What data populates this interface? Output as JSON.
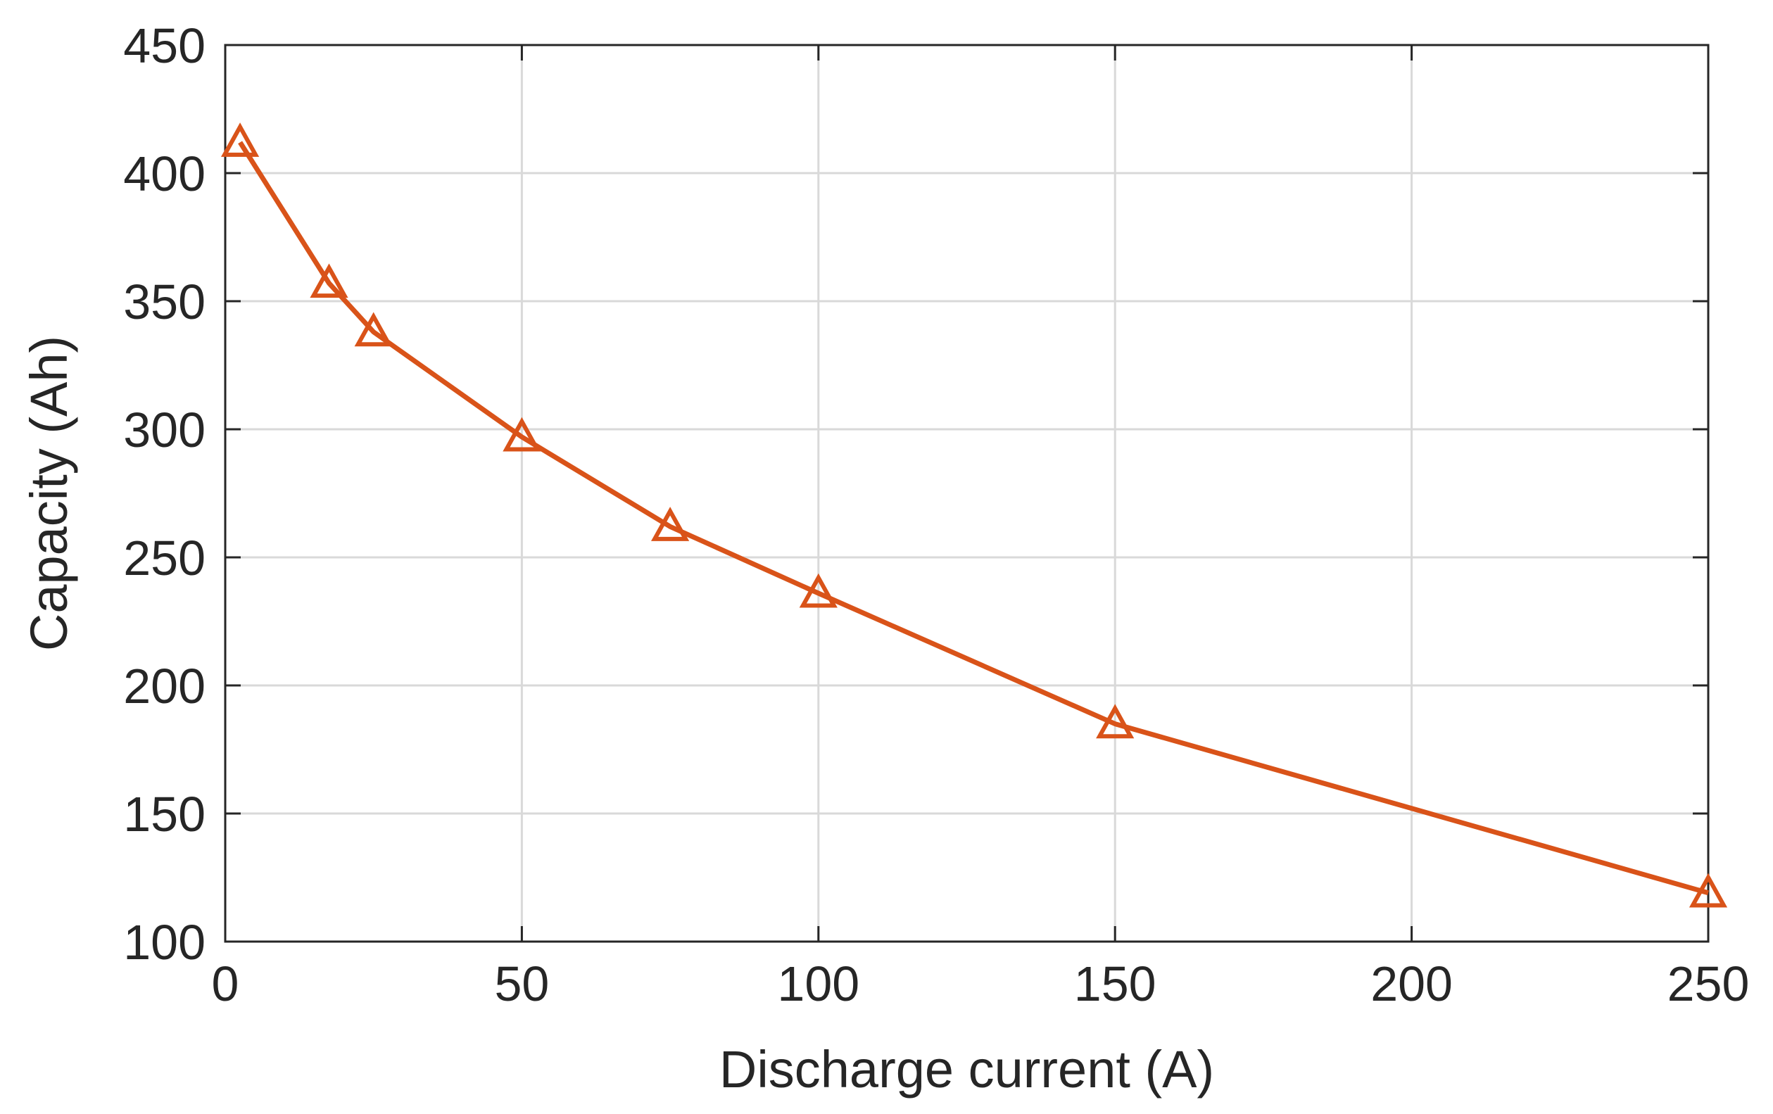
{
  "chart_data": {
    "type": "line",
    "title": "",
    "xlabel": "Discharge current (A)",
    "ylabel": "Capacity (Ah)",
    "xlim": [
      0,
      250
    ],
    "ylim": [
      100,
      450
    ],
    "xticks": [
      0,
      50,
      100,
      150,
      200,
      250
    ],
    "yticks": [
      100,
      150,
      200,
      250,
      300,
      350,
      400,
      450
    ],
    "xtick_labels": [
      "0",
      "50",
      "100",
      "150",
      "200",
      "250"
    ],
    "ytick_labels": [
      "100",
      "150",
      "200",
      "250",
      "300",
      "350",
      "400",
      "450"
    ],
    "grid": true,
    "series": [
      {
        "marker": "triangle",
        "color": "#d95319",
        "x": [
          2.5,
          17.5,
          25,
          50,
          75,
          100,
          150,
          250
        ],
        "y": [
          412,
          357,
          338,
          297,
          262,
          236,
          185,
          119
        ]
      }
    ]
  }
}
